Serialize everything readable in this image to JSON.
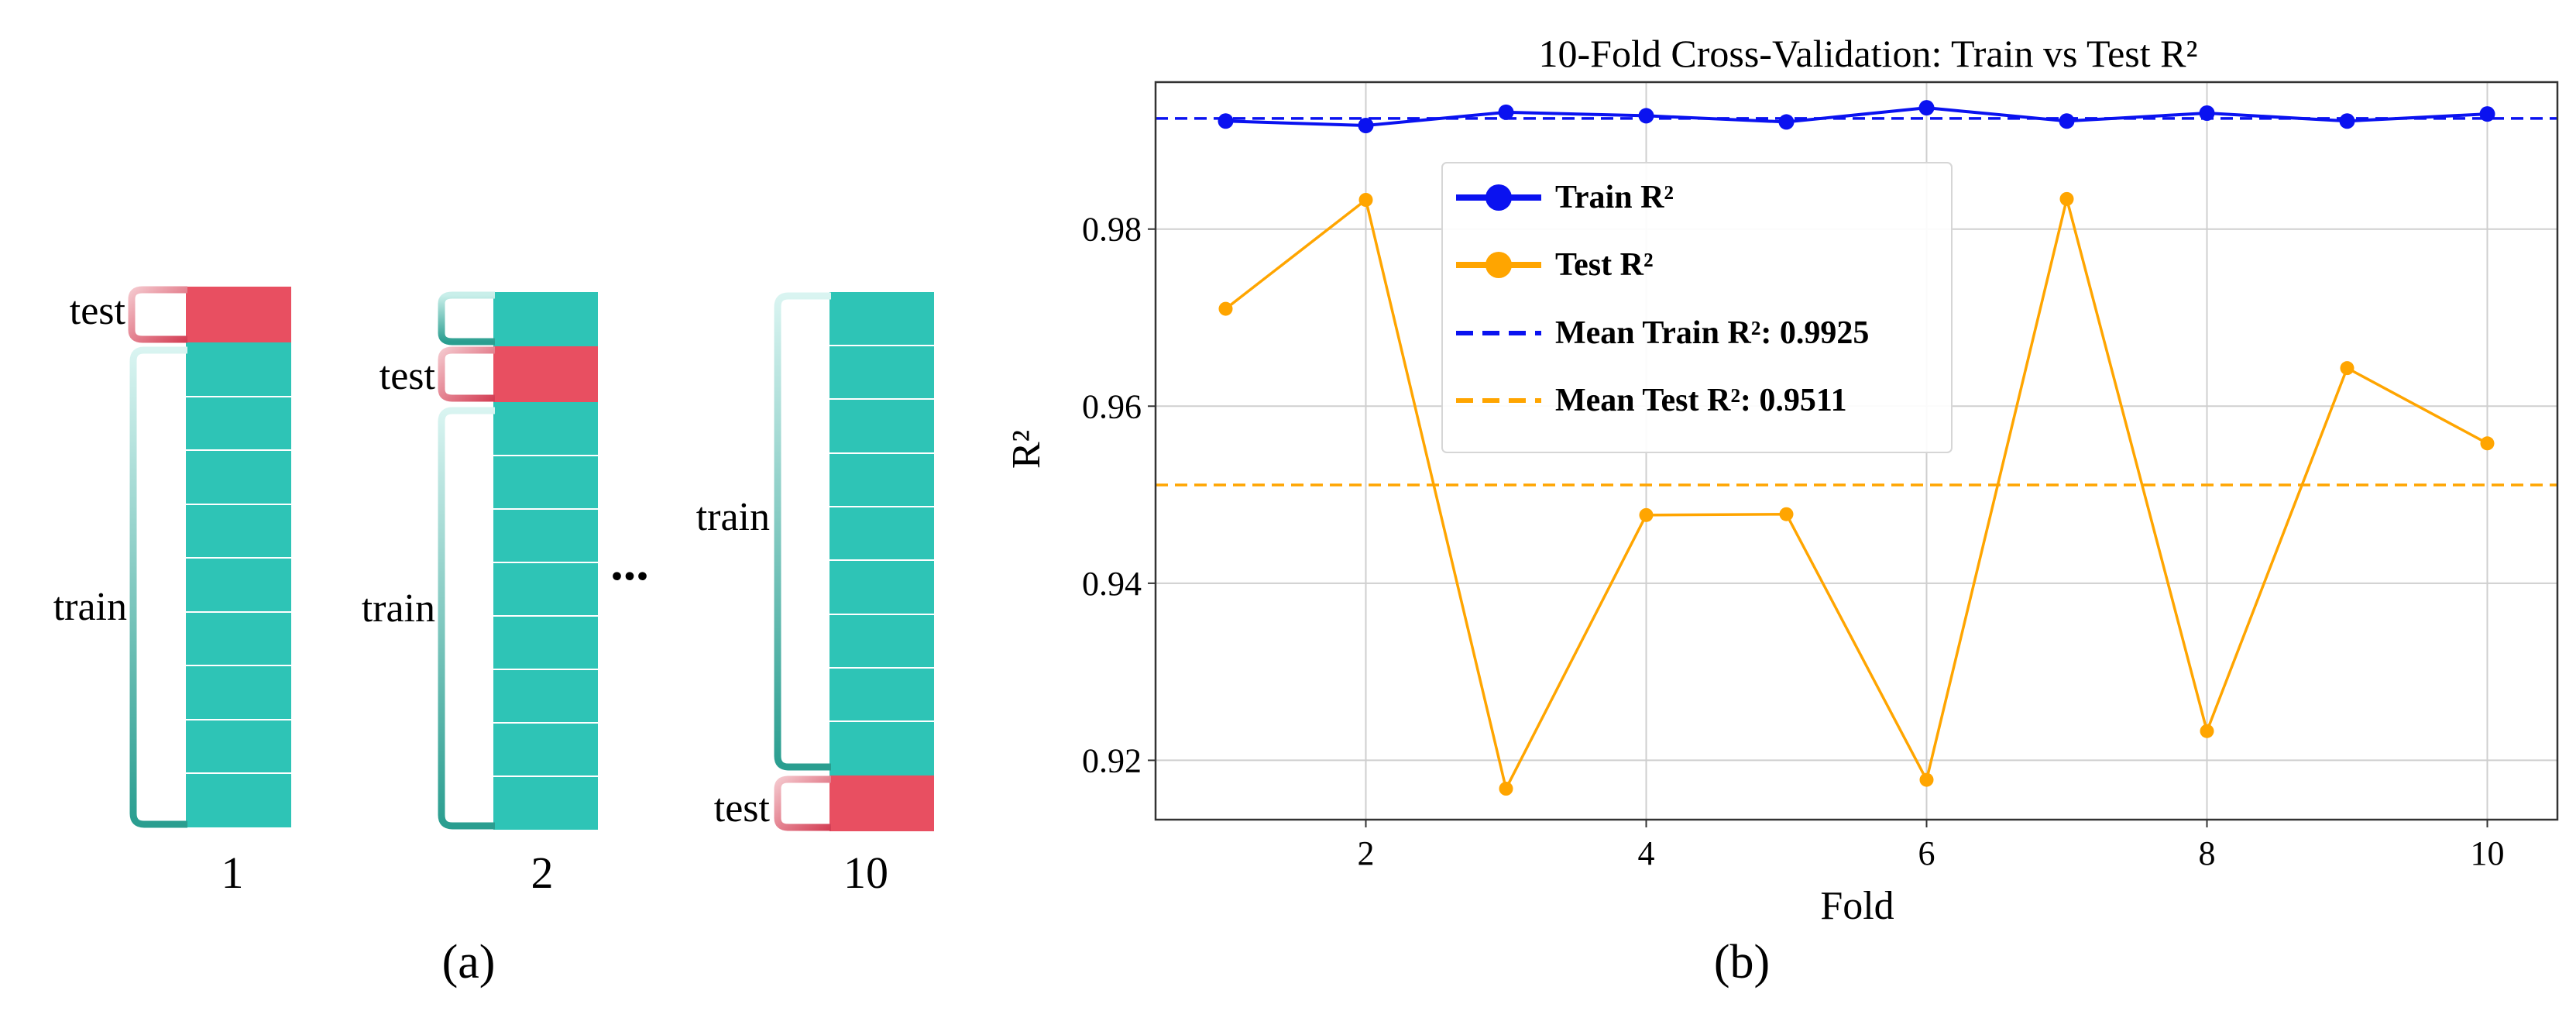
{
  "panel_a": {
    "folds": [
      {
        "number": "1",
        "train_label": "train",
        "test_label": "test",
        "test_position": "top"
      },
      {
        "number": "2",
        "train_label": "train",
        "test_label": "test",
        "test_position": "second"
      },
      {
        "number": "10",
        "train_label": "train",
        "test_label": "test",
        "test_position": "bottom"
      }
    ],
    "ellipsis": "...",
    "caption": "(a)"
  },
  "panel_b": {
    "caption": "(b)"
  },
  "colors": {
    "train_block": "#2ec4b6",
    "test_block": "#e84f61",
    "train_series": "#0a12f0",
    "test_series": "#ffa500"
  },
  "chart_data": {
    "type": "line",
    "title": "10-Fold Cross-Validation: Train vs Test R²",
    "xlabel": "Fold",
    "ylabel": "R²",
    "xlim": [
      0.5,
      10.5
    ],
    "ylim": [
      0.9133,
      0.9966
    ],
    "x": [
      1,
      2,
      3,
      4,
      5,
      6,
      7,
      8,
      9,
      10
    ],
    "xticks": [
      2,
      4,
      6,
      8,
      10
    ],
    "yticks": [
      0.92,
      0.94,
      0.96,
      0.98
    ],
    "ytick_labels": [
      "0.92",
      "0.94",
      "0.96",
      "0.98"
    ],
    "grid": true,
    "legend_position": "upper-center",
    "series": [
      {
        "name": "Train R²",
        "values": [
          0.9922,
          0.9917,
          0.9932,
          0.9928,
          0.9921,
          0.9937,
          0.9922,
          0.9931,
          0.9922,
          0.993
        ]
      },
      {
        "name": "Test R²",
        "values": [
          0.971,
          0.9833,
          0.9168,
          0.9477,
          0.9478,
          0.9178,
          0.9834,
          0.9233,
          0.9643,
          0.9558
        ]
      }
    ],
    "reference_lines": [
      {
        "name": "Mean Train R²: 0.9925",
        "value": 0.9925
      },
      {
        "name": "Mean Test R²: 0.9511",
        "value": 0.9511
      }
    ]
  }
}
